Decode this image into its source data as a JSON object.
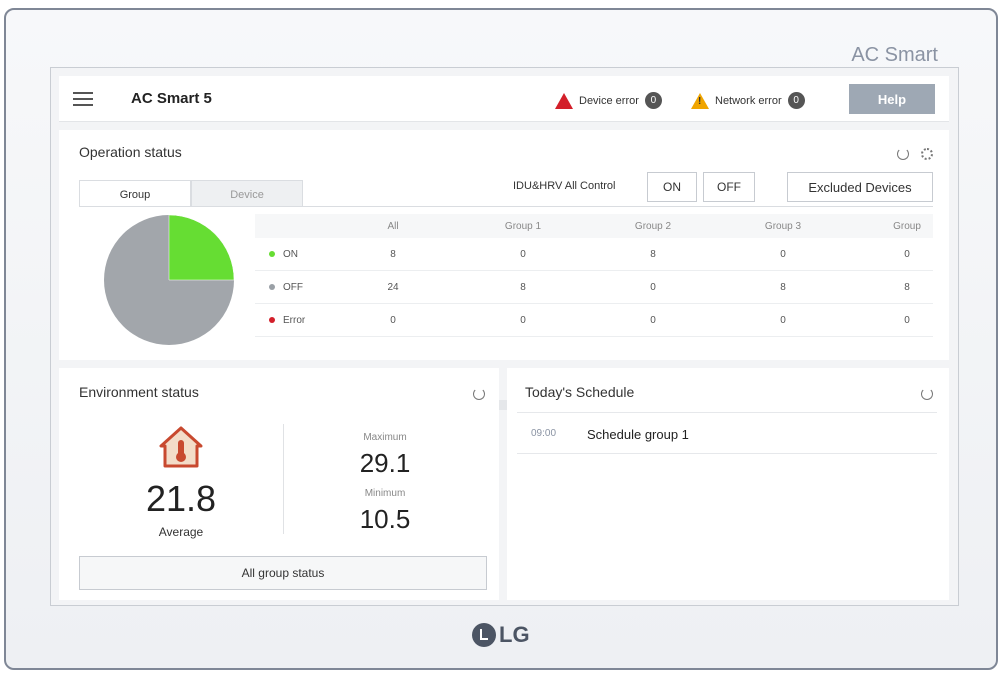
{
  "device": {
    "brand": "AC Smart",
    "logo": "LG"
  },
  "header": {
    "title": "AC Smart 5",
    "device_error_label": "Device error",
    "device_error_count": "0",
    "network_error_label": "Network error",
    "network_error_count": "0",
    "help_label": "Help"
  },
  "operation": {
    "title": "Operation status",
    "tabs": [
      "Group",
      "Device"
    ],
    "control_label": "IDU&HRV All Control",
    "on_label": "ON",
    "off_label": "OFF",
    "excluded_label": "Excluded Devices",
    "columns": [
      "All",
      "Group 1",
      "Group 2",
      "Group 3",
      "Group"
    ],
    "rows": [
      {
        "label": "ON",
        "color": "#66dd33",
        "values": [
          "8",
          "0",
          "8",
          "0",
          "0"
        ]
      },
      {
        "label": "OFF",
        "color": "#9aa0a6",
        "values": [
          "24",
          "8",
          "0",
          "8",
          "8"
        ]
      },
      {
        "label": "Error",
        "color": "#d31f2a",
        "values": [
          "0",
          "0",
          "0",
          "0",
          "0"
        ]
      }
    ],
    "pie": {
      "on": 8,
      "off": 24,
      "error": 0,
      "on_color": "#66dd33",
      "off_color": "#a2a6ab"
    }
  },
  "environment": {
    "title": "Environment status",
    "average_value": "21.8",
    "average_label": "Average",
    "maximum_label": "Maximum",
    "maximum_value": "29.1",
    "minimum_label": "Minimum",
    "minimum_value": "10.5",
    "all_group_label": "All group status"
  },
  "schedule": {
    "title": "Today's Schedule",
    "items": [
      {
        "time": "09:00",
        "name": "Schedule group 1"
      }
    ]
  },
  "icons": [
    "menu-icon",
    "warning-icon",
    "refresh-icon",
    "settings-icon",
    "thermometer-house-icon"
  ]
}
